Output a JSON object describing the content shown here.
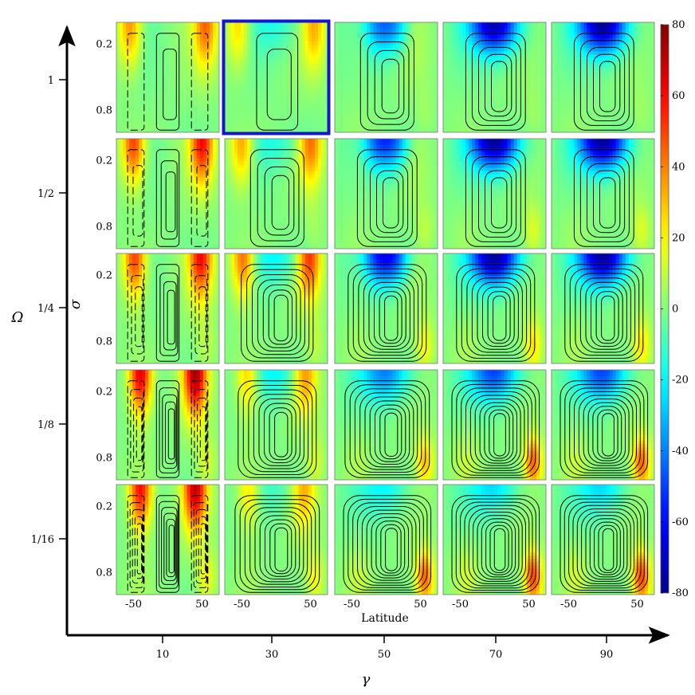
{
  "chart_data": {
    "type": "heatmap",
    "title": "",
    "layout": "5x5 grid of contour panels (rows: Omega, columns: gamma)",
    "outer_axes": {
      "xlabel": "γ",
      "ylabel": "Ω",
      "x_ticks": [
        "10",
        "30",
        "50",
        "70",
        "90"
      ],
      "y_ticks": [
        "1",
        "1/2",
        "1/4",
        "1/8",
        "1/16"
      ]
    },
    "panel_axes": {
      "xlabel": "Latitude",
      "ylabel": "σ",
      "x_ticks": [
        "-50",
        "50"
      ],
      "y_ticks": [
        "0.2",
        "0.8"
      ],
      "xlim": [
        -75,
        75
      ],
      "ylim_top_to_bottom": [
        0.0,
        1.0
      ]
    },
    "colorbar": {
      "ticks": [
        "80",
        "60",
        "40",
        "20",
        "0",
        "-20",
        "-40",
        "-60",
        "-80"
      ],
      "range": [
        -80,
        80
      ],
      "colormap": "jet"
    },
    "highlight": {
      "row": 0,
      "col": 1,
      "color": "#1515cc"
    },
    "rows": [
      {
        "omega": "1",
        "panels": [
          {
            "gamma": 10,
            "jet_strength": 40,
            "jet_lat": 55,
            "easterly": 0,
            "cells": 3,
            "contours": 2,
            "lower_warm": 0
          },
          {
            "gamma": 30,
            "jet_strength": 30,
            "jet_lat": 55,
            "easterly": 15,
            "cells": 1,
            "contours": 2,
            "lower_warm": 0
          },
          {
            "gamma": 50,
            "jet_strength": 10,
            "jet_lat": 40,
            "easterly": 45,
            "cells": 1,
            "contours": 4,
            "lower_warm": 5
          },
          {
            "gamma": 70,
            "jet_strength": 0,
            "jet_lat": 40,
            "easterly": 75,
            "cells": 1,
            "contours": 5,
            "lower_warm": 5
          },
          {
            "gamma": 90,
            "jet_strength": 0,
            "jet_lat": 40,
            "easterly": 80,
            "cells": 1,
            "contours": 5,
            "lower_warm": 5
          }
        ]
      },
      {
        "omega": "1/2",
        "panels": [
          {
            "gamma": 10,
            "jet_strength": 55,
            "jet_lat": 50,
            "easterly": 0,
            "cells": 3,
            "contours": 3,
            "lower_warm": 0
          },
          {
            "gamma": 30,
            "jet_strength": 40,
            "jet_lat": 50,
            "easterly": 15,
            "cells": 1,
            "contours": 4,
            "lower_warm": 5
          },
          {
            "gamma": 50,
            "jet_strength": 10,
            "jet_lat": 40,
            "easterly": 55,
            "cells": 1,
            "contours": 5,
            "lower_warm": 10
          },
          {
            "gamma": 70,
            "jet_strength": 0,
            "jet_lat": 40,
            "easterly": 80,
            "cells": 1,
            "contours": 5,
            "lower_warm": 15
          },
          {
            "gamma": 90,
            "jet_strength": 0,
            "jet_lat": 40,
            "easterly": 80,
            "cells": 1,
            "contours": 5,
            "lower_warm": 15
          }
        ]
      },
      {
        "omega": "1/4",
        "panels": [
          {
            "gamma": 10,
            "jet_strength": 55,
            "jet_lat": 48,
            "easterly": 0,
            "cells": 3,
            "contours": 4,
            "lower_warm": 10
          },
          {
            "gamma": 30,
            "jet_strength": 50,
            "jet_lat": 48,
            "easterly": 20,
            "cells": 1,
            "contours": 7,
            "lower_warm": 10
          },
          {
            "gamma": 50,
            "jet_strength": 10,
            "jet_lat": 40,
            "easterly": 65,
            "cells": 1,
            "contours": 8,
            "lower_warm": 20
          },
          {
            "gamma": 70,
            "jet_strength": 0,
            "jet_lat": 40,
            "easterly": 80,
            "cells": 1,
            "contours": 8,
            "lower_warm": 25
          },
          {
            "gamma": 90,
            "jet_strength": 0,
            "jet_lat": 40,
            "easterly": 80,
            "cells": 1,
            "contours": 8,
            "lower_warm": 25
          }
        ]
      },
      {
        "omega": "1/8",
        "panels": [
          {
            "gamma": 10,
            "jet_strength": 70,
            "jet_lat": 40,
            "easterly": 0,
            "cells": 3,
            "contours": 5,
            "lower_warm": 15
          },
          {
            "gamma": 30,
            "jet_strength": 35,
            "jet_lat": 42,
            "easterly": 20,
            "cells": 1,
            "contours": 8,
            "lower_warm": 15
          },
          {
            "gamma": 50,
            "jet_strength": 0,
            "jet_lat": 40,
            "easterly": 40,
            "cells": 1,
            "contours": 9,
            "lower_warm": 30
          },
          {
            "gamma": 70,
            "jet_strength": 0,
            "jet_lat": 40,
            "easterly": 50,
            "cells": 1,
            "contours": 10,
            "lower_warm": 45
          },
          {
            "gamma": 90,
            "jet_strength": 0,
            "jet_lat": 40,
            "easterly": 50,
            "cells": 1,
            "contours": 10,
            "lower_warm": 45
          }
        ]
      },
      {
        "omega": "1/16",
        "panels": [
          {
            "gamma": 10,
            "jet_strength": 65,
            "jet_lat": 40,
            "easterly": 0,
            "cells": 3,
            "contours": 6,
            "lower_warm": 20
          },
          {
            "gamma": 30,
            "jet_strength": 30,
            "jet_lat": 40,
            "easterly": 10,
            "cells": 1,
            "contours": 9,
            "lower_warm": 20
          },
          {
            "gamma": 50,
            "jet_strength": 0,
            "jet_lat": 40,
            "easterly": 20,
            "cells": 1,
            "contours": 10,
            "lower_warm": 45
          },
          {
            "gamma": 70,
            "jet_strength": 0,
            "jet_lat": 40,
            "easterly": 25,
            "cells": 1,
            "contours": 11,
            "lower_warm": 50
          },
          {
            "gamma": 90,
            "jet_strength": 0,
            "jet_lat": 40,
            "easterly": 25,
            "cells": 1,
            "contours": 11,
            "lower_warm": 50
          }
        ]
      }
    ]
  }
}
